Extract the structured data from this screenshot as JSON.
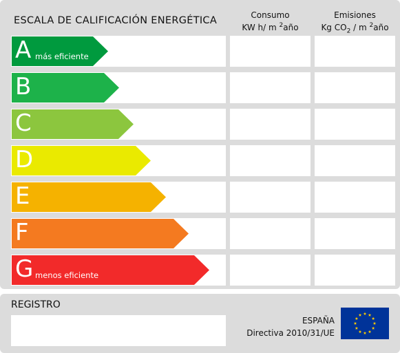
{
  "header": {
    "title": "ESCALA DE CALIFICACIÓN ENERGÉTICA",
    "consumo_line1": "Consumo",
    "consumo_line2_pre": "KW h/ m",
    "consumo_sup": "2",
    "consumo_line2_post": "año",
    "emisiones_line1": "Emisiones",
    "emisiones_line2_pre": "Kg CO",
    "emisiones_sub": "2",
    "emisiones_line2_mid": " / m",
    "emisiones_sup": "2",
    "emisiones_line2_post": "año"
  },
  "ratings": [
    {
      "letter": "A",
      "note": "más eficiente",
      "color": "#009a3e"
    },
    {
      "letter": "B",
      "note": "",
      "color": "#1db24a"
    },
    {
      "letter": "C",
      "note": "",
      "color": "#8cc63e"
    },
    {
      "letter": "D",
      "note": "",
      "color": "#eaea00"
    },
    {
      "letter": "E",
      "note": "",
      "color": "#f5b200"
    },
    {
      "letter": "F",
      "note": "",
      "color": "#f47a20"
    },
    {
      "letter": "G",
      "note": "menos eficiente",
      "color": "#f22a2a"
    }
  ],
  "footer": {
    "registro": "REGISTRO",
    "country": "ESPAÑA",
    "directive": "Directiva 2010/31/UE"
  },
  "flag": {
    "background": "#003399",
    "stars": "#ffcc00"
  }
}
